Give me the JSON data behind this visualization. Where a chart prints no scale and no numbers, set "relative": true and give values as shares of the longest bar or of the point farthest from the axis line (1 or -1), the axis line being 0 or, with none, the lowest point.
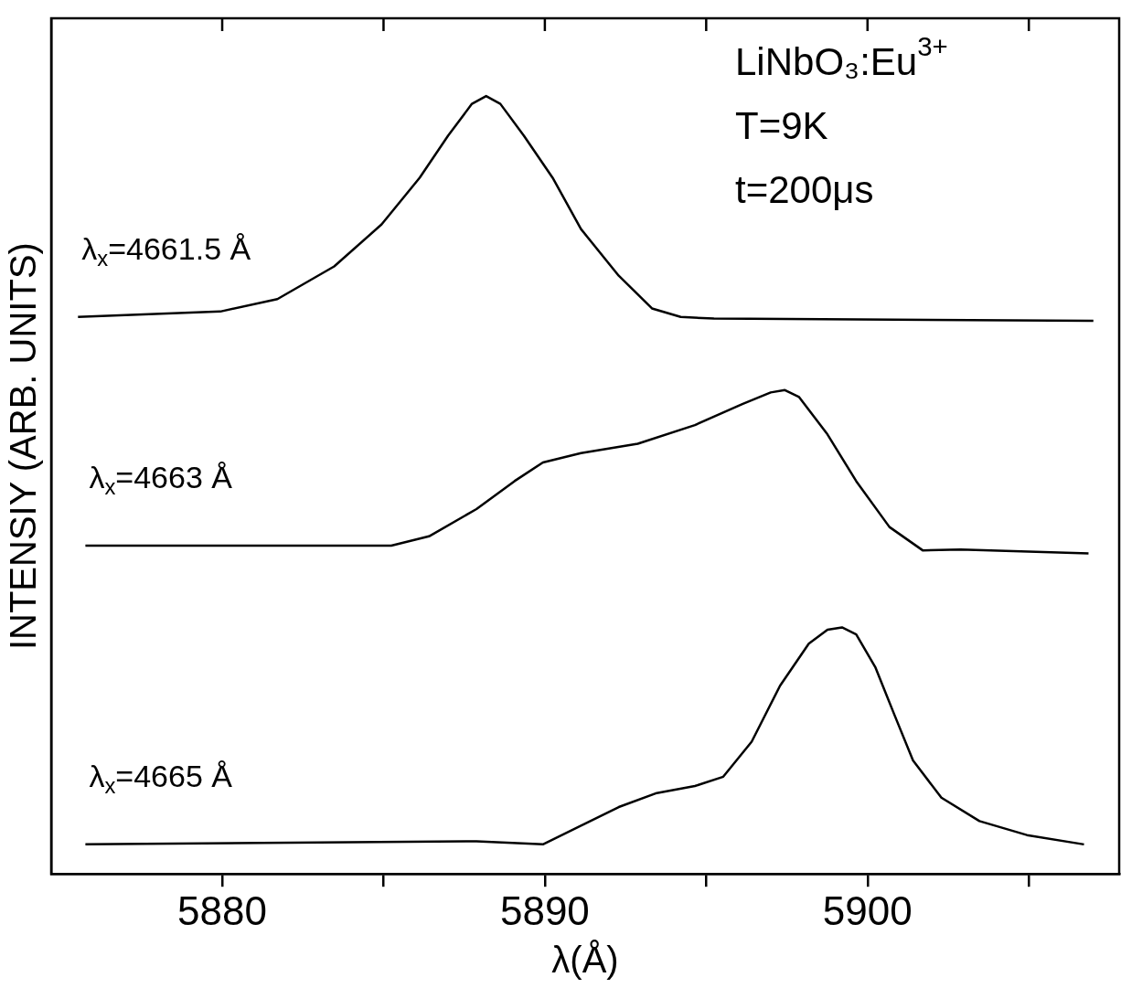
{
  "chart_data": {
    "type": "line",
    "relative": true,
    "xlabel": "λ(Å)",
    "ylabel": "INTENSIY (ARB. UNITS)",
    "xlim": [
      5874.7,
      5907.8
    ],
    "xticks": [
      5880,
      {
        "value": 5885,
        "label": null
      },
      5890,
      {
        "value": 5895,
        "label": null
      },
      5900,
      {
        "value": 5905,
        "label": null
      }
    ],
    "grid": false,
    "legend": false,
    "marker": "none",
    "line_style": "solid",
    "annotations": [
      "LiNbO₃:Eu$^{3+}$",
      "T=9K",
      "t=200μs"
    ],
    "series": [
      {
        "name": "λ$_{x}$=4661.5 Å",
        "color": "#000000",
        "x": [
          5875.53,
          5879.94,
          5881.71,
          5883.47,
          5884.94,
          5886.12,
          5887.0,
          5887.74,
          5888.18,
          5888.62,
          5889.35,
          5890.24,
          5891.12,
          5892.29,
          5893.32,
          5894.21,
          5895.24,
          5907.0
        ],
        "values": [
          0.716,
          0.723,
          0.739,
          0.781,
          0.835,
          0.895,
          0.949,
          0.99,
          1,
          0.99,
          0.949,
          0.895,
          0.829,
          0.769,
          0.727,
          0.716,
          0.714,
          0.711
        ]
      },
      {
        "name": "λ$_{x}$=4663 Å",
        "color": "#000000",
        "x": [
          5875.76,
          5885.24,
          5886.41,
          5887.88,
          5889.06,
          5889.94,
          5891.12,
          5892.88,
          5894.65,
          5896.12,
          5897.0,
          5897.44,
          5897.88,
          5898.76,
          5899.65,
          5900.68,
          5901.71,
          5902.88,
          5906.85
        ],
        "values": [
          0.422,
          0.422,
          0.434,
          0.469,
          0.505,
          0.529,
          0.541,
          0.553,
          0.577,
          0.604,
          0.619,
          0.622,
          0.613,
          0.565,
          0.505,
          0.446,
          0.416,
          0.417,
          0.412
        ]
      },
      {
        "name": "λ$_{x}$=4665 Å",
        "color": "#000000",
        "x": [
          5875.76,
          5887.88,
          5889.94,
          5891.12,
          5892.29,
          5893.47,
          5894.65,
          5895.53,
          5896.41,
          5897.29,
          5898.18,
          5898.76,
          5899.21,
          5899.65,
          5900.24,
          5900.82,
          5901.41,
          5902.29,
          5903.47,
          5904.94,
          5906.71
        ],
        "values": [
          0.038,
          0.042,
          0.038,
          0.062,
          0.086,
          0.104,
          0.113,
          0.125,
          0.17,
          0.242,
          0.296,
          0.314,
          0.317,
          0.308,
          0.266,
          0.206,
          0.146,
          0.098,
          0.068,
          0.05,
          0.038
        ]
      }
    ]
  }
}
